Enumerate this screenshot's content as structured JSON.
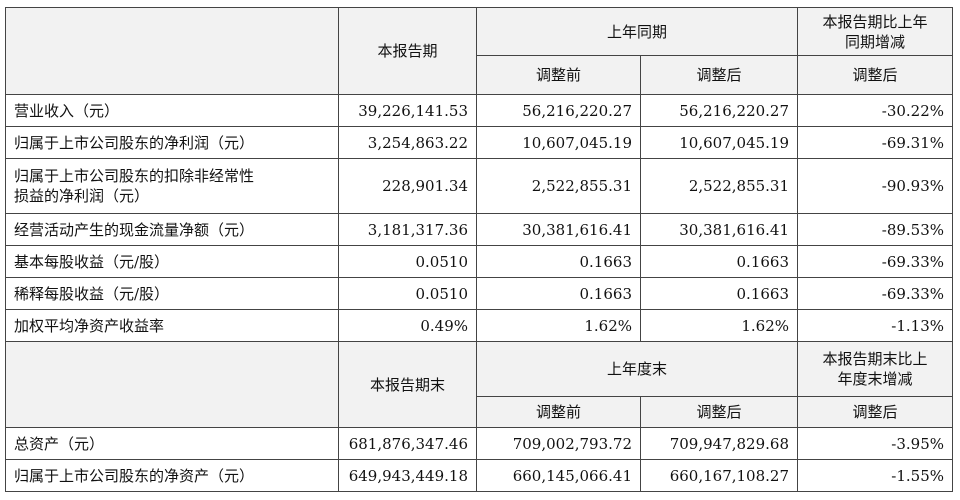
{
  "sections": [
    {
      "header": {
        "period": "本报告期",
        "prior": "上年同期",
        "change": [
          "本报告期比上年",
          "同期增减"
        ],
        "before": "调整前",
        "after": "调整后",
        "change_basis": "调整后"
      },
      "rows": [
        {
          "label": [
            "营业收入（元）"
          ],
          "values": [
            "39,226,141.53",
            "56,216,220.27",
            "56,216,220.27",
            "-30.22%"
          ]
        },
        {
          "label": [
            "归属于上市公司股东的净利润（元）"
          ],
          "values": [
            "3,254,863.22",
            "10,607,045.19",
            "10,607,045.19",
            "-69.31%"
          ]
        },
        {
          "label": [
            "归属于上市公司股东的扣除非经常性",
            "损益的净利润（元）"
          ],
          "values": [
            "228,901.34",
            "2,522,855.31",
            "2,522,855.31",
            "-90.93%"
          ]
        },
        {
          "label": [
            "经营活动产生的现金流量净额（元）"
          ],
          "values": [
            "3,181,317.36",
            "30,381,616.41",
            "30,381,616.41",
            "-89.53%"
          ]
        },
        {
          "label": [
            "基本每股收益（元/股）"
          ],
          "values": [
            "0.0510",
            "0.1663",
            "0.1663",
            "-69.33%"
          ]
        },
        {
          "label": [
            "稀释每股收益（元/股）"
          ],
          "values": [
            "0.0510",
            "0.1663",
            "0.1663",
            "-69.33%"
          ]
        },
        {
          "label": [
            "加权平均净资产收益率"
          ],
          "values": [
            "0.49%",
            "1.62%",
            "1.62%",
            "-1.13%"
          ]
        }
      ]
    },
    {
      "header": {
        "period": "本报告期末",
        "prior": "上年度末",
        "change": [
          "本报告期末比上",
          "年度末增减"
        ],
        "before": "调整前",
        "after": "调整后",
        "change_basis": "调整后"
      },
      "rows": [
        {
          "label": [
            "总资产（元）"
          ],
          "values": [
            "681,876,347.46",
            "709,002,793.72",
            "709,947,829.68",
            "-3.95%"
          ]
        },
        {
          "label": [
            "归属于上市公司股东的净资产（元）"
          ],
          "values": [
            "649,943,449.18",
            "660,145,066.41",
            "660,167,108.27",
            "-1.55%"
          ]
        }
      ]
    }
  ]
}
